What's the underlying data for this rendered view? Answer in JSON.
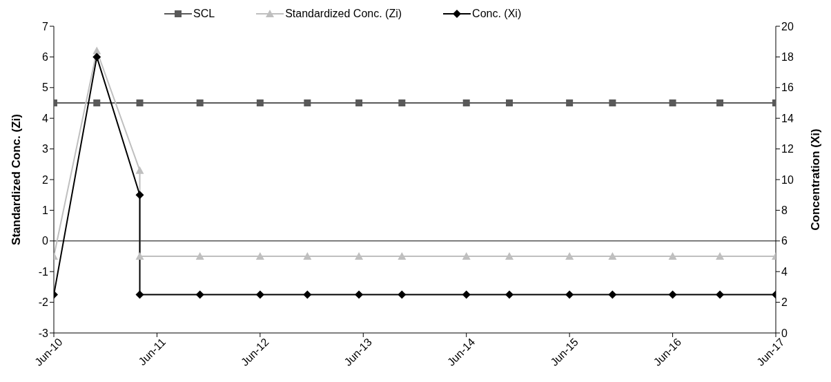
{
  "chart_data": {
    "type": "line",
    "ylabel": "Standardized Conc. (Zi)",
    "y2label": "Concentration (Xi)",
    "xlim": [
      "--06-10",
      "--06-17"
    ],
    "xticks": [
      {
        "value": "--06-10",
        "label": "Jun-10"
      },
      {
        "value": "--06-11",
        "label": "Jun-11"
      },
      {
        "value": "--06-12",
        "label": "Jun-12"
      },
      {
        "value": "--06-13",
        "label": "Jun-13"
      },
      {
        "value": "--06-14",
        "label": "Jun-14"
      },
      {
        "value": "--06-15",
        "label": "Jun-15"
      },
      {
        "value": "--06-16",
        "label": "Jun-16"
      },
      {
        "value": "--06-17",
        "label": "Jun-17"
      }
    ],
    "ylim": [
      -3,
      7
    ],
    "yticks": [
      -3,
      -2,
      -1,
      0,
      1,
      2,
      3,
      4,
      5,
      6,
      7
    ],
    "y2lim": [
      0,
      20
    ],
    "y2ticks": [
      0,
      2,
      4,
      6,
      8,
      10,
      12,
      14,
      16,
      18,
      20
    ],
    "grid": false,
    "legend": "top",
    "ref_lines": [
      {
        "axis": "y",
        "value": 0,
        "color": "#000000"
      }
    ],
    "series": [
      {
        "name": "SCL",
        "color": "#595959",
        "marker": "square",
        "axis": "y",
        "x": [
          "--06-10T00:00",
          "--06-10T10:00",
          "--06-10T20:00",
          "--06-11T10:00",
          "--06-12T00:00",
          "--06-12T11:00",
          "--06-12T23:00",
          "--06-13T09:00",
          "--06-14T00:00",
          "--06-14T10:00",
          "--06-15T00:00",
          "--06-15T10:00",
          "--06-16T00:00",
          "--06-16T11:00",
          "--06-17T00:00"
        ],
        "values": [
          4.5,
          4.5,
          4.5,
          4.5,
          4.5,
          4.5,
          4.5,
          4.5,
          4.5,
          4.5,
          4.5,
          4.5,
          4.5,
          4.5,
          4.5
        ]
      },
      {
        "name": "Standardized Conc. (Zi)",
        "color": "#bfbfbf",
        "marker": "triangle",
        "axis": "y",
        "x": [
          "--06-10T00:00",
          "--06-10T10:00",
          "--06-10T20:00",
          "--06-10T20:00",
          "--06-11T10:00",
          "--06-12T00:00",
          "--06-12T11:00",
          "--06-12T23:00",
          "--06-13T09:00",
          "--06-14T00:00",
          "--06-14T10:00",
          "--06-15T00:00",
          "--06-15T10:00",
          "--06-16T00:00",
          "--06-16T11:00",
          "--06-17T00:00"
        ],
        "values": [
          -0.5,
          6.2,
          2.3,
          -0.5,
          -0.5,
          -0.5,
          -0.5,
          -0.5,
          -0.5,
          -0.5,
          -0.5,
          -0.5,
          -0.5,
          -0.5,
          -0.5,
          -0.5
        ]
      },
      {
        "name": "Conc. (Xi)",
        "color": "#000000",
        "marker": "diamond",
        "axis": "y2",
        "x": [
          "--06-10T00:00",
          "--06-10T10:00",
          "--06-10T20:00",
          "--06-10T20:00",
          "--06-11T10:00",
          "--06-12T00:00",
          "--06-12T11:00",
          "--06-12T23:00",
          "--06-13T09:00",
          "--06-14T00:00",
          "--06-14T10:00",
          "--06-15T00:00",
          "--06-15T10:00",
          "--06-16T00:00",
          "--06-16T11:00",
          "--06-17T00:00"
        ],
        "values": [
          2.5,
          18,
          9,
          2.5,
          2.5,
          2.5,
          2.5,
          2.5,
          2.5,
          2.5,
          2.5,
          2.5,
          2.5,
          2.5,
          2.5,
          2.5
        ]
      }
    ]
  }
}
